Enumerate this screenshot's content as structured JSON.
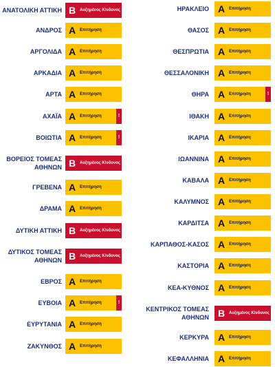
{
  "columns": [
    {
      "items": [
        {
          "name": "ΑΝΑΤΟΛΙΚΗ ΑΤΤΙΚΗ",
          "level": "Β",
          "status": "Αυξημένος Κίνδυνος"
        },
        {
          "name": "ΑΝΔΡΟΣ",
          "level": "Α",
          "status": "Επιτήρηση"
        },
        {
          "name": "ΑΡΓΟΛΙΔΑ",
          "level": "Α",
          "status": "Επιτήρηση"
        },
        {
          "name": "ΑΡΚΑΔΙΑ",
          "level": "Α",
          "status": "Επιτήρηση"
        },
        {
          "name": "ΑΡΤΑ",
          "level": "Α",
          "status": "Επιτήρηση"
        },
        {
          "name": "ΑΧΑΪΑ",
          "level": "Α",
          "status": "Επιτήρηση",
          "alert": "!"
        },
        {
          "name": "ΒΟΙΩΤΙΑ",
          "level": "Α",
          "status": "Επιτήρηση",
          "alert": "!"
        },
        {
          "name": "ΒΟΡΕΙΟΣ ΤΟΜΕΑΣ ΑΘΗΝΩΝ",
          "level": "Β",
          "status": "Αυξημένος Κίνδυνος"
        },
        {
          "name": "ΓΡΕΒΕΝΑ",
          "level": "Α",
          "status": "Επιτήρηση"
        },
        {
          "name": "ΔΡΑΜΑ",
          "level": "Α",
          "status": "Επιτήρηση"
        },
        {
          "name": "ΔΥΤΙΚΗ ΑΤΤΙΚΗ",
          "level": "Β",
          "status": "Αυξημένος Κίνδυνος"
        },
        {
          "name": "ΔΥΤΙΚΟΣ ΤΟΜΕΑΣ ΑΘΗΝΩΝ",
          "level": "Β",
          "status": "Αυξημένος Κίνδυνος"
        },
        {
          "name": "ΕΒΡΟΣ",
          "level": "Α",
          "status": "Επιτήρηση"
        },
        {
          "name": "ΕΥΒΟΙΑ",
          "level": "Α",
          "status": "Επιτήρηση",
          "alert": "!"
        },
        {
          "name": "ΕΥΡΥΤΑΝΙΑ",
          "level": "Α",
          "status": "Επιτήρηση"
        },
        {
          "name": "ΖΑΚΥΝΘΟΣ",
          "level": "Α",
          "status": "Επιτήρηση"
        }
      ]
    },
    {
      "items": [
        {
          "name": "ΗΡΑΚΛΕΙΟ",
          "level": "Α",
          "status": "Επιτήρηση"
        },
        {
          "name": "ΘΑΣΟΣ",
          "level": "Α",
          "status": "Επιτήρηση"
        },
        {
          "name": "ΘΕΣΠΡΩΤΙΑ",
          "level": "Α",
          "status": "Επιτήρηση"
        },
        {
          "name": "ΘΕΣΣΑΛΟΝΙΚΗ",
          "level": "Α",
          "status": "Επιτήρηση"
        },
        {
          "name": "ΘΗΡΑ",
          "level": "Α",
          "status": "Επιτήρηση",
          "alert": "!"
        },
        {
          "name": "ΙΘΑΚΗ",
          "level": "Α",
          "status": "Επιτήρηση"
        },
        {
          "name": "ΙΚΑΡΙΑ",
          "level": "Α",
          "status": "Επιτήρηση"
        },
        {
          "name": "ΙΩΑΝΝΙΝΑ",
          "level": "Α",
          "status": "Επιτήρηση"
        },
        {
          "name": "ΚΑΒΑΛΑ",
          "level": "Α",
          "status": "Επιτήρηση"
        },
        {
          "name": "ΚΑΛΥΜΝΟΣ",
          "level": "Α",
          "status": "Επιτήρηση"
        },
        {
          "name": "ΚΑΡΔΙΤΣΑ",
          "level": "Α",
          "status": "Επιτήρηση"
        },
        {
          "name": "ΚΑΡΠΑΘΟΣ-ΚΑΣΟΣ",
          "level": "Α",
          "status": "Επιτήρηση"
        },
        {
          "name": "ΚΑΣΤΟΡΙΑ",
          "level": "Α",
          "status": "Επιτήρηση"
        },
        {
          "name": "ΚΕΑ-ΚΥΘΝΟΣ",
          "level": "Α",
          "status": "Επιτήρηση"
        },
        {
          "name": "ΚΕΝΤΡΙΚΟΣ ΤΟΜΕΑΣ ΑΘΗΝΩΝ",
          "level": "Β",
          "status": "Αυξημένος Κίνδυνος"
        },
        {
          "name": "ΚΕΡΚΥΡΑ",
          "level": "Α",
          "status": "Επιτήρηση"
        },
        {
          "name": "ΚΕΦΑΛΛΗΝΙΑ",
          "level": "Α",
          "status": "Επιτήρηση"
        }
      ]
    }
  ]
}
